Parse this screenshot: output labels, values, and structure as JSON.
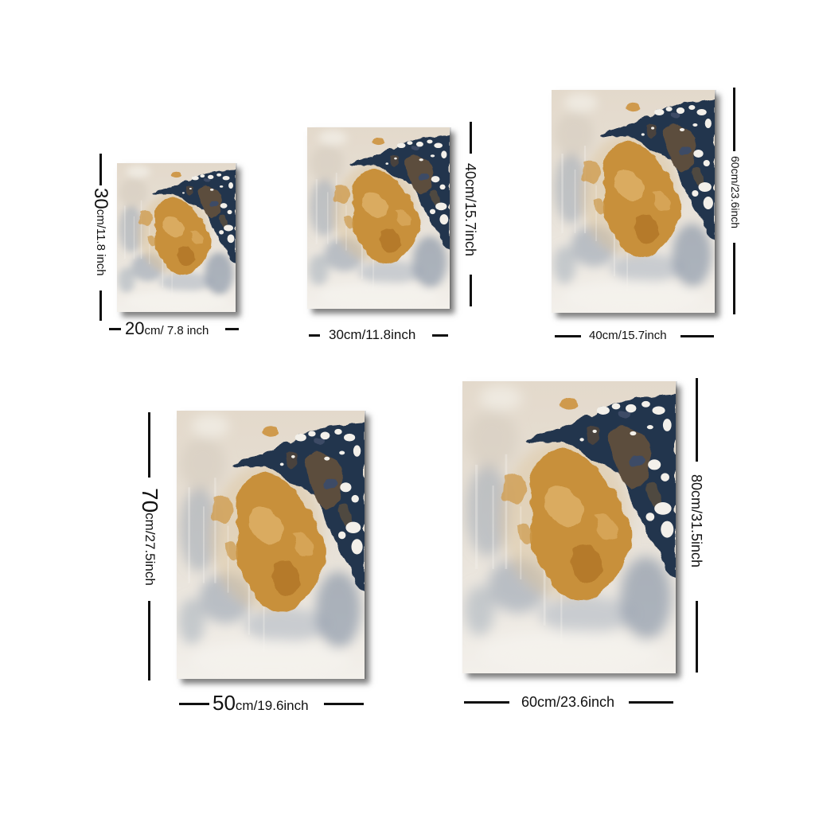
{
  "prints": [
    {
      "vertical_label": {
        "num": "30",
        "unit": "cm/11.8 inch"
      },
      "horizontal_label": {
        "num": "20",
        "unit": "cm/ 7.8 inch"
      }
    },
    {
      "vertical_label": {
        "text": "40cm/15.7inch"
      },
      "horizontal_label": {
        "text": "30cm/11.8inch"
      }
    },
    {
      "vertical_label": {
        "text": "60cm/23.6inch"
      },
      "horizontal_label": {
        "text": "40cm/15.7inch"
      }
    },
    {
      "vertical_label": {
        "num": "70",
        "unit": "cm/27.5inch"
      },
      "horizontal_label": {
        "num": "50",
        "unit": "cm/19.6inch"
      }
    },
    {
      "vertical_label": {
        "text": "80cm/31.5inch"
      },
      "horizontal_label": {
        "text": "60cm/23.6inch"
      }
    }
  ],
  "palette": {
    "navy": "#24344e",
    "gold": "#c8903b",
    "gray_blue": "#8f9cad",
    "cream": "#e9e4dc",
    "label_ink": "#111111"
  }
}
